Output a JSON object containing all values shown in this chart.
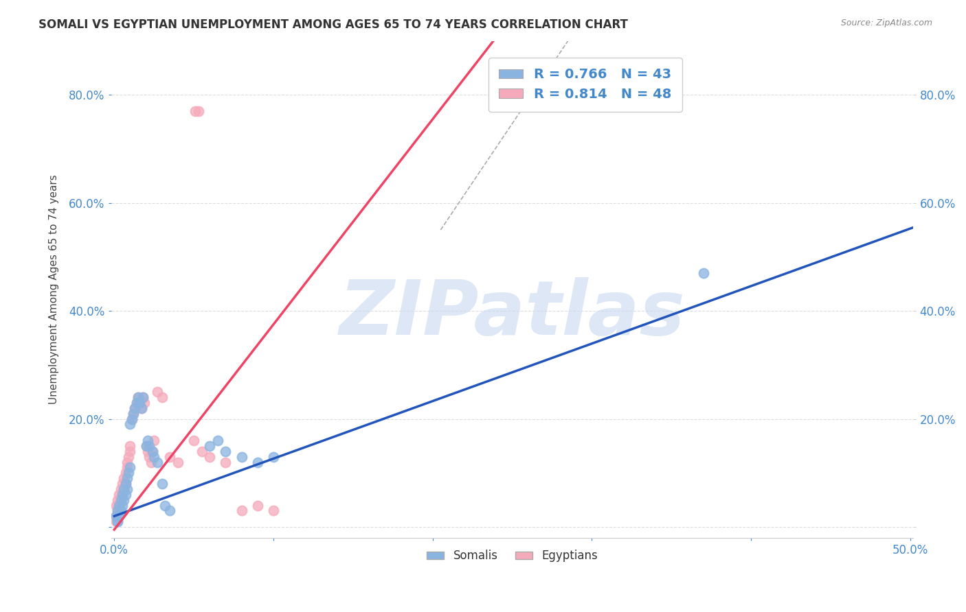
{
  "title": "SOMALI VS EGYPTIAN UNEMPLOYMENT AMONG AGES 65 TO 74 YEARS CORRELATION CHART",
  "source": "Source: ZipAtlas.com",
  "ylabel": "Unemployment Among Ages 65 to 74 years",
  "xlim": [
    -0.002,
    0.502
  ],
  "ylim": [
    -0.02,
    0.9
  ],
  "xticks": [
    0.0,
    0.1,
    0.2,
    0.3,
    0.4,
    0.5
  ],
  "yticks": [
    0.0,
    0.2,
    0.4,
    0.6,
    0.8
  ],
  "ytick_labels": [
    "",
    "20.0%",
    "40.0%",
    "60.0%",
    "80.0%"
  ],
  "xtick_labels": [
    "0.0%",
    "",
    "",
    "",
    "",
    "50.0%"
  ],
  "somali_color": "#8ab4e0",
  "egyptian_color": "#f5aabb",
  "somali_line_color": "#2255bb",
  "egyptian_line_color": "#ee4466",
  "somali_R": 0.766,
  "somali_N": 43,
  "egyptian_R": 0.814,
  "egyptian_N": 48,
  "watermark": "ZIPatlas",
  "watermark_color": "#c8d8f0",
  "background_color": "#ffffff",
  "grid_color": "#dddddd",
  "somali_scatter_x": [
    0.001,
    0.002,
    0.002,
    0.003,
    0.003,
    0.004,
    0.004,
    0.005,
    0.005,
    0.006,
    0.006,
    0.007,
    0.007,
    0.008,
    0.008,
    0.009,
    0.01,
    0.01,
    0.011,
    0.012,
    0.013,
    0.014,
    0.015,
    0.016,
    0.017,
    0.018,
    0.02,
    0.021,
    0.022,
    0.024,
    0.025,
    0.027,
    0.03,
    0.032,
    0.035,
    0.06,
    0.065,
    0.07,
    0.08,
    0.09,
    0.1,
    0.37,
    0.002
  ],
  "somali_scatter_y": [
    0.02,
    0.01,
    0.03,
    0.02,
    0.04,
    0.03,
    0.05,
    0.04,
    0.06,
    0.05,
    0.07,
    0.06,
    0.08,
    0.07,
    0.09,
    0.1,
    0.11,
    0.19,
    0.2,
    0.21,
    0.22,
    0.23,
    0.24,
    0.23,
    0.22,
    0.24,
    0.15,
    0.16,
    0.15,
    0.14,
    0.13,
    0.12,
    0.08,
    0.04,
    0.03,
    0.15,
    0.16,
    0.14,
    0.13,
    0.12,
    0.13,
    0.47,
    0.01
  ],
  "egyptian_scatter_x": [
    0.001,
    0.001,
    0.002,
    0.002,
    0.003,
    0.003,
    0.004,
    0.004,
    0.005,
    0.005,
    0.006,
    0.006,
    0.007,
    0.007,
    0.008,
    0.008,
    0.009,
    0.01,
    0.01,
    0.011,
    0.012,
    0.013,
    0.014,
    0.015,
    0.016,
    0.017,
    0.018,
    0.019,
    0.02,
    0.021,
    0.022,
    0.023,
    0.024,
    0.025,
    0.027,
    0.03,
    0.035,
    0.04,
    0.05,
    0.055,
    0.06,
    0.07,
    0.08,
    0.09,
    0.1,
    0.051,
    0.053,
    0.001
  ],
  "egyptian_scatter_y": [
    0.02,
    0.04,
    0.03,
    0.05,
    0.04,
    0.06,
    0.05,
    0.07,
    0.06,
    0.08,
    0.07,
    0.09,
    0.08,
    0.1,
    0.11,
    0.12,
    0.13,
    0.14,
    0.15,
    0.2,
    0.21,
    0.22,
    0.23,
    0.24,
    0.23,
    0.22,
    0.24,
    0.23,
    0.15,
    0.14,
    0.13,
    0.12,
    0.14,
    0.16,
    0.25,
    0.24,
    0.13,
    0.12,
    0.16,
    0.14,
    0.13,
    0.12,
    0.03,
    0.04,
    0.03,
    0.77,
    0.77,
    0.01
  ],
  "somali_line_slope": 1.065,
  "somali_line_intercept": 0.02,
  "egyptian_line_slope": 3.8,
  "egyptian_line_intercept": -0.005,
  "dashed_line_x": [
    0.205,
    0.285
  ],
  "dashed_line_y": [
    0.55,
    0.9
  ]
}
